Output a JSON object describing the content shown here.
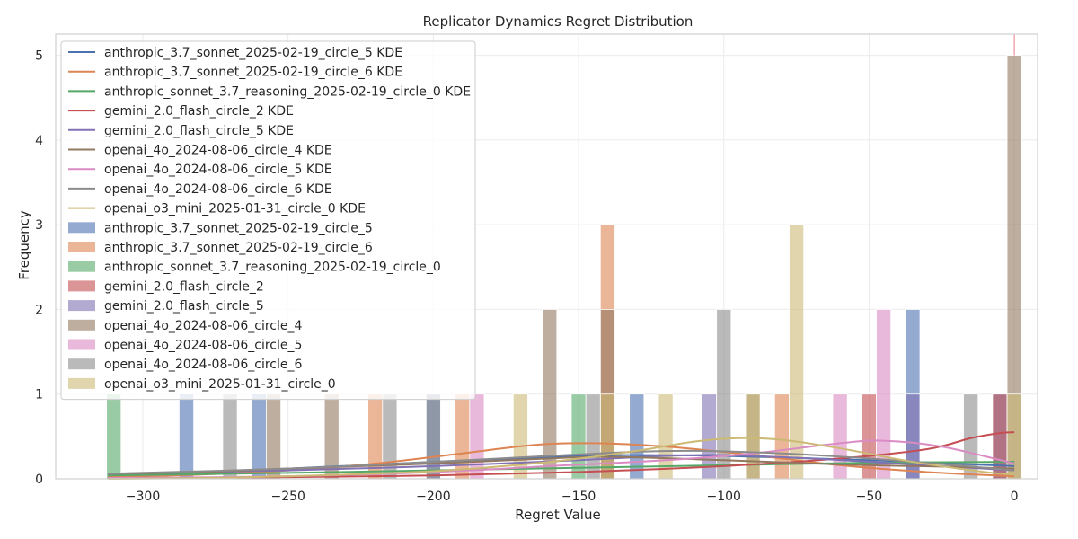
{
  "chart_data": {
    "type": "bar",
    "title": "Replicator Dynamics Regret Distribution",
    "xlabel": "Regret Value",
    "ylabel": "Frequency",
    "xlim": [
      -330,
      8
    ],
    "ylim": [
      0,
      5.25
    ],
    "x_ticks": [
      -300,
      -250,
      -200,
      -150,
      -100,
      -50,
      0
    ],
    "x_tick_labels": [
      "−300",
      "−250",
      "−200",
      "−150",
      "−100",
      "−50",
      "0"
    ],
    "y_ticks": [
      0,
      1,
      2,
      3,
      4,
      5
    ],
    "y_tick_labels": [
      "0",
      "1",
      "2",
      "3",
      "4",
      "5"
    ],
    "grid": true,
    "legend_position": "upper-left",
    "bin_width": 5,
    "bar_alpha": 0.6,
    "series": [
      {
        "name": "anthropic_3.7_sonnet_2025-02-19_circle_5",
        "color": "#4c72b0",
        "bins": [
          [
            -285,
            1
          ],
          [
            -260,
            1
          ],
          [
            -200,
            1
          ],
          [
            -130,
            1
          ],
          [
            -35,
            2
          ],
          [
            -5,
            1
          ]
        ],
        "kde": [
          [
            -312,
            0.05
          ],
          [
            -280,
            0.07
          ],
          [
            -250,
            0.12
          ],
          [
            -200,
            0.2
          ],
          [
            -150,
            0.27
          ],
          [
            -130,
            0.28
          ],
          [
            -100,
            0.27
          ],
          [
            -50,
            0.22
          ],
          [
            -35,
            0.2
          ],
          [
            0,
            0.15
          ]
        ]
      },
      {
        "name": "anthropic_3.7_sonnet_2025-02-19_circle_6",
        "color": "#dd8452",
        "bins": [
          [
            -220,
            1
          ],
          [
            -190,
            1
          ],
          [
            -140,
            3
          ],
          [
            -80,
            1
          ]
        ],
        "kde": [
          [
            -312,
            0.02
          ],
          [
            -280,
            0.05
          ],
          [
            -250,
            0.1
          ],
          [
            -220,
            0.18
          ],
          [
            -190,
            0.3
          ],
          [
            -165,
            0.4
          ],
          [
            -145,
            0.42
          ],
          [
            -120,
            0.38
          ],
          [
            -90,
            0.28
          ],
          [
            -60,
            0.16
          ],
          [
            -30,
            0.08
          ],
          [
            0,
            0.03
          ]
        ]
      },
      {
        "name": "anthropic_sonnet_3.7_reasoning_2025-02-19_circle_0",
        "color": "#55a868",
        "bins": [
          [
            -310,
            1
          ],
          [
            -150,
            1
          ]
        ],
        "kde": [
          [
            -312,
            0.04
          ],
          [
            -250,
            0.07
          ],
          [
            -200,
            0.1
          ],
          [
            -150,
            0.13
          ],
          [
            -100,
            0.16
          ],
          [
            -50,
            0.19
          ],
          [
            0,
            0.2
          ]
        ]
      },
      {
        "name": "gemini_2.0_flash_circle_2",
        "color": "#c44e52",
        "bins": [
          [
            -50,
            1
          ],
          [
            -5,
            1
          ]
        ],
        "kde": [
          [
            -312,
            0.01
          ],
          [
            -250,
            0.02
          ],
          [
            -200,
            0.04
          ],
          [
            -150,
            0.08
          ],
          [
            -100,
            0.15
          ],
          [
            -60,
            0.24
          ],
          [
            -30,
            0.35
          ],
          [
            -15,
            0.48
          ],
          [
            -5,
            0.54
          ],
          [
            0,
            0.55
          ]
        ]
      },
      {
        "name": "gemini_2.0_flash_circle_5",
        "color": "#8172b3",
        "bins": [
          [
            -105,
            1
          ],
          [
            -35,
            1
          ]
        ],
        "kde": [
          [
            -312,
            0.06
          ],
          [
            -250,
            0.1
          ],
          [
            -200,
            0.15
          ],
          [
            -150,
            0.22
          ],
          [
            -120,
            0.27
          ],
          [
            -100,
            0.28
          ],
          [
            -70,
            0.24
          ],
          [
            -40,
            0.18
          ],
          [
            0,
            0.1
          ]
        ]
      },
      {
        "name": "openai_4o_2024-08-06_circle_4",
        "color": "#937860",
        "bins": [
          [
            -255,
            1
          ],
          [
            -235,
            1
          ],
          [
            -160,
            2
          ],
          [
            -140,
            2
          ],
          [
            -90,
            1
          ],
          [
            0,
            5
          ]
        ],
        "kde": [
          [
            -312,
            0.06
          ],
          [
            -280,
            0.08
          ],
          [
            -250,
            0.12
          ],
          [
            -200,
            0.18
          ],
          [
            -160,
            0.24
          ],
          [
            -140,
            0.26
          ],
          [
            -100,
            0.22
          ],
          [
            -60,
            0.17
          ],
          [
            -20,
            0.14
          ],
          [
            0,
            0.12
          ]
        ]
      },
      {
        "name": "openai_4o_2024-08-06_circle_5",
        "color": "#da8bc3",
        "bins": [
          [
            -185,
            1
          ],
          [
            -60,
            1
          ],
          [
            -45,
            2
          ]
        ],
        "kde": [
          [
            -312,
            0.01
          ],
          [
            -250,
            0.03
          ],
          [
            -200,
            0.08
          ],
          [
            -160,
            0.15
          ],
          [
            -120,
            0.22
          ],
          [
            -90,
            0.3
          ],
          [
            -60,
            0.42
          ],
          [
            -45,
            0.45
          ],
          [
            -25,
            0.38
          ],
          [
            0,
            0.18
          ]
        ]
      },
      {
        "name": "openai_4o_2024-08-06_circle_6",
        "color": "#8c8c8c",
        "bins": [
          [
            -270,
            1
          ],
          [
            -215,
            1
          ],
          [
            -200,
            1
          ],
          [
            -145,
            1
          ],
          [
            -100,
            2
          ],
          [
            -15,
            1
          ]
        ],
        "kde": [
          [
            -312,
            0.06
          ],
          [
            -250,
            0.12
          ],
          [
            -200,
            0.2
          ],
          [
            -160,
            0.27
          ],
          [
            -130,
            0.32
          ],
          [
            -110,
            0.33
          ],
          [
            -80,
            0.3
          ],
          [
            -50,
            0.24
          ],
          [
            -20,
            0.16
          ],
          [
            0,
            0.1
          ]
        ]
      },
      {
        "name": "openai_o3_mini_2025-01-31_circle_0",
        "color": "#ccb974",
        "bins": [
          [
            -170,
            1
          ],
          [
            -140,
            1
          ],
          [
            -120,
            1
          ],
          [
            -90,
            1
          ],
          [
            -75,
            3
          ],
          [
            0,
            1
          ]
        ],
        "kde": [
          [
            -312,
            0.0
          ],
          [
            -280,
            0.01
          ],
          [
            -250,
            0.03
          ],
          [
            -200,
            0.09
          ],
          [
            -160,
            0.2
          ],
          [
            -130,
            0.33
          ],
          [
            -110,
            0.44
          ],
          [
            -95,
            0.48
          ],
          [
            -80,
            0.46
          ],
          [
            -60,
            0.36
          ],
          [
            -35,
            0.2
          ],
          [
            -10,
            0.08
          ],
          [
            0,
            0.05
          ]
        ]
      }
    ],
    "extra_marks": {
      "vertical_line_x": 0,
      "vertical_line_color": "#f2a6b0"
    }
  }
}
